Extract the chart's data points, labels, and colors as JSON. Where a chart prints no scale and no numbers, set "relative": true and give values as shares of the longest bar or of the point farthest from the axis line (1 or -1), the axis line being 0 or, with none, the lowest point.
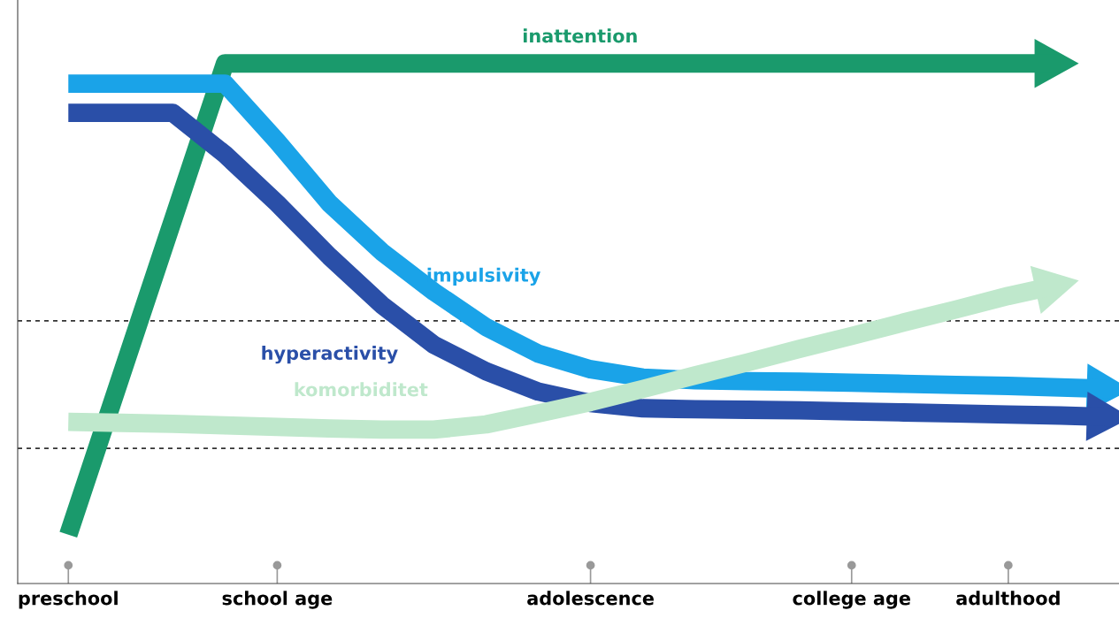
{
  "chart_data": {
    "type": "line",
    "relative": true,
    "legend": false,
    "grid": false,
    "marker": "none",
    "line_style": "solid",
    "tick_labels": "x",
    "categories": [
      "preschool",
      null,
      null,
      null,
      "school age",
      null,
      null,
      null,
      null,
      null,
      "adolescence",
      null,
      null,
      null,
      null,
      "college age",
      null,
      null,
      "adulthood",
      null,
      null
    ],
    "series": [
      {
        "name": "inattention",
        "color": "#1a9a6c",
        "values": [
          0.094,
          0.396,
          0.698,
          1.0,
          1.0,
          1.0,
          1.0,
          1.0,
          1.0,
          1.0,
          1.0,
          1.0,
          1.0,
          1.0,
          1.0,
          1.0,
          1.0,
          1.0,
          1.0,
          1.0,
          null
        ]
      },
      {
        "name": "impulsivity",
        "color": "#1aa3e8",
        "values": [
          0.961,
          0.961,
          0.961,
          0.961,
          0.85,
          0.731,
          0.638,
          0.561,
          0.493,
          0.442,
          0.412,
          0.396,
          0.391,
          0.389,
          0.388,
          0.386,
          0.384,
          0.382,
          0.38,
          0.377,
          0.374
        ]
      },
      {
        "name": "hyperactivity",
        "color": "#2a4fa8",
        "values": [
          0.905,
          0.905,
          0.905,
          0.825,
          0.731,
          0.629,
          0.536,
          0.459,
          0.408,
          0.369,
          0.347,
          0.337,
          0.335,
          0.334,
          0.333,
          0.331,
          0.329,
          0.327,
          0.325,
          0.323,
          0.32
        ]
      },
      {
        "name": "komorbiditet",
        "color": "#bfe8cc",
        "values": [
          0.311,
          0.309,
          0.307,
          0.304,
          0.301,
          0.298,
          0.296,
          0.296,
          0.306,
          0.327,
          0.349,
          0.374,
          0.4,
          0.425,
          0.451,
          0.476,
          0.502,
          0.527,
          0.553,
          0.575,
          null
        ]
      }
    ],
    "ref_lines": [
      {
        "axis": "y",
        "value": 0.505,
        "color": "#333333",
        "line_style": "dashed"
      },
      {
        "axis": "y",
        "value": 0.26,
        "color": "#333333",
        "line_style": "dashed"
      }
    ]
  }
}
